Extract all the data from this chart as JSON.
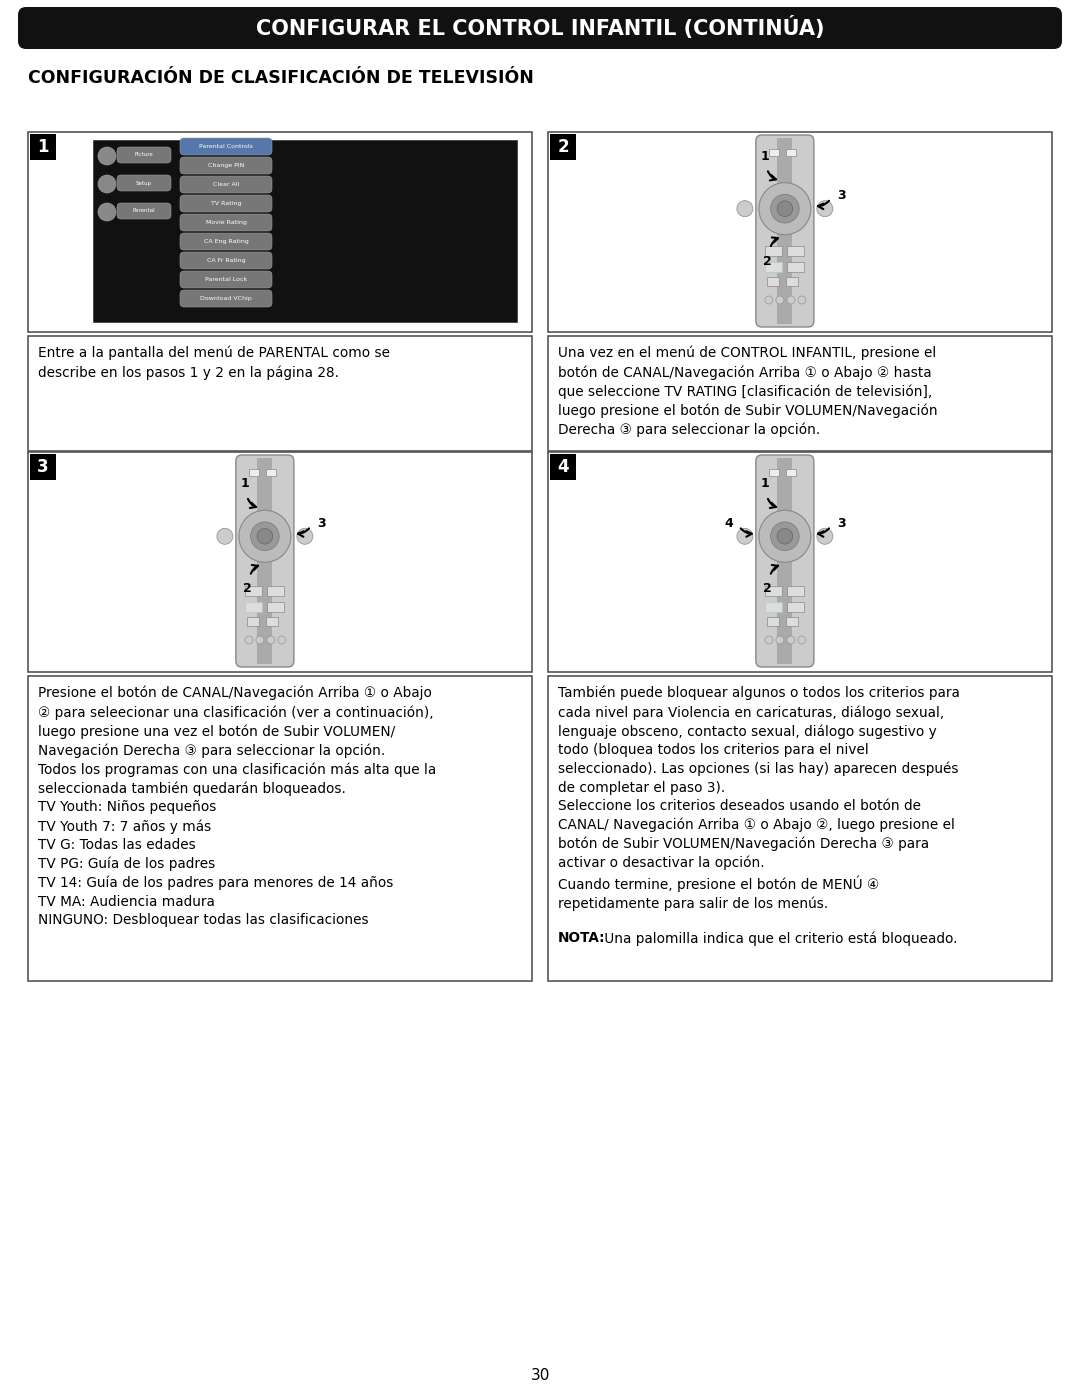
{
  "page_title": "CONFIGURAR EL CONTROL INFANTIL (CONTINÚA)",
  "section_title": "CONFIGURACIÓN DE CLASIFICACIÓN DE TELEVISIÓN",
  "page_number": "30",
  "bg_color": "#ffffff",
  "header_bg": "#1a1a1a",
  "header_text_color": "#ffffff",
  "text1": "Entre a la pantalla del menú de PARENTAL como se\ndescribe en los pasos 1 y 2 en la página 28.",
  "text2": "Una vez en el menú de CONTROL INFANTIL, presione el\nbotón de CANAL/Navegación Arriba ① o Abajo ② hasta\nque seleccione TV RATING [clasificación de televisión],\nluego presione el botón de Subir VOLUMEN/Navegación\nDerecha ③ para seleccionar la opción.",
  "text3": "Presione el botón de CANAL/Navegación Arriba ① o Abajo\n② para seleecionar una clasificación (ver a continuación),\nluego presione una vez el botón de Subir VOLUMEN/\nNavegación Derecha ③ para seleccionar la opción.\nTodos los programas con una clasificación más alta que la\nseleccionada también quedarán bloqueados.\nTV Youth: Niños pequeños\nTV Youth 7: 7 años y más\nTV G: Todas las edades\nTV PG: Guía de los padres\nTV 14: Guía de los padres para menores de 14 años\nTV MA: Audiencia madura\nNINGUNO: Desbloquear todas las clasificaciones",
  "text4_main": "También puede bloquear algunos o todos los criterios para\ncada nivel para Violencia en caricaturas, diálogo sexual,\nlenguaje obsceno, contacto sexual, diálogo sugestivo y\ntodo (bloquea todos los criterios para el nivel\nseleccionado). Las opciones (si las hay) aparecen después\nde completar el paso 3).\nSeleccione los criterios deseados usando el botón de\nCANAL/ Navegación Arriba ① o Abajo ②, luego presione el\nbotón de Subir VOLUMEN/Navegación Derecha ③ para\nactivar o desactivar la opción.\nCuando termine, presione el botón de MENÚ ④\nrepetidamente para salir de los menús.",
  "text4_nota_bold": "NOTA:",
  "text4_nota_rest": " Una palomilla indica que el criterio está bloqueado.",
  "menu_items": [
    "Parental Controls",
    "Change PIN",
    "Clear All",
    "TV Rating",
    "Movie Rating",
    "CA Eng Rating",
    "CA Fr Rating",
    "Parental Lock",
    "Download VChip"
  ],
  "menu_left": [
    "Picture",
    "Setup",
    "Parental"
  ]
}
